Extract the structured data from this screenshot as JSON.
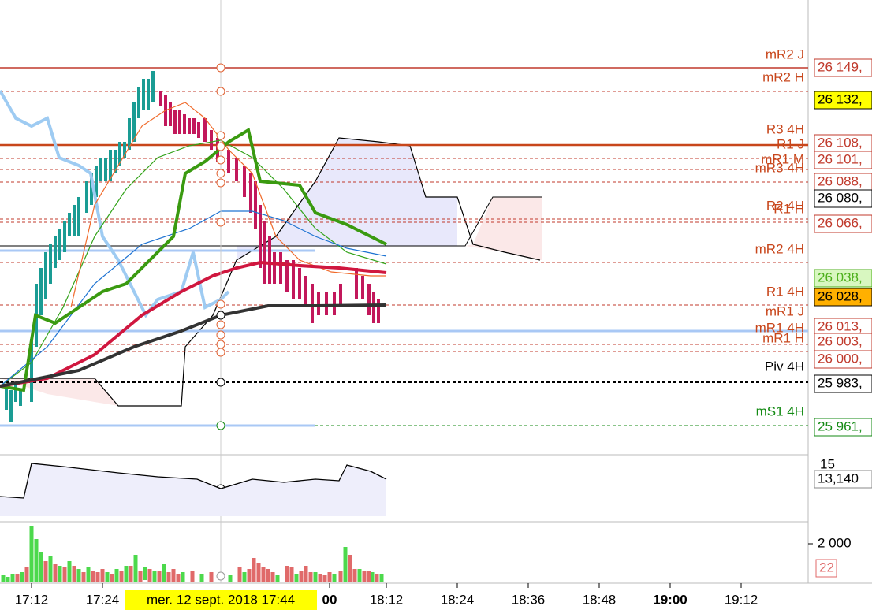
{
  "levels": [
    {
      "label": "mR2 J"
    },
    {
      "label": "mR2 H"
    },
    {
      "label": "R3 4H"
    },
    {
      "label": "R1 J"
    },
    {
      "label": "mR1 M"
    },
    {
      "label": "mR3 4H"
    },
    {
      "label": "R2 4H"
    },
    {
      "label": "R1 H"
    },
    {
      "label": "mR2 4H"
    },
    {
      "label": "R1 4H"
    },
    {
      "label": "mR1 J"
    },
    {
      "label": "mR1 4H"
    },
    {
      "label": "mR1 H"
    },
    {
      "label": "Piv 4H",
      "color": "#000000"
    },
    {
      "label": "mS1 4H",
      "color": "#138a13"
    }
  ],
  "price_labels": [
    {
      "text": "26 149,",
      "color": "#c0392b",
      "background": "#ffffff"
    },
    {
      "text": "26 132,",
      "color": "#000000",
      "background": "#ffff00"
    },
    {
      "text": "26 108,",
      "color": "#c0392b",
      "background": "#ffffff"
    },
    {
      "text": "26 101,",
      "color": "#c0392b",
      "background": "#ffffff"
    },
    {
      "text": "26 088,",
      "color": "#c0392b",
      "background": "#ffffff"
    },
    {
      "text": "26 080,",
      "color": "#000000",
      "background": "#ffffff"
    },
    {
      "text": "26 066,",
      "color": "#c0392b",
      "background": "#ffffff"
    },
    {
      "text": "26 038,",
      "color": "#4caf1a",
      "background": "#d8f7c0"
    },
    {
      "text": "26 028,",
      "color": "#000000",
      "background": "#ffb000"
    },
    {
      "text": "26 013,",
      "color": "#c0392b",
      "background": "#ffffff"
    },
    {
      "text": "26 003,",
      "color": "#c0392b",
      "background": "#ffffff"
    },
    {
      "text": "26 000,",
      "color": "#c0392b",
      "background": "#ffffff"
    },
    {
      "text": "25 983,",
      "color": "#000000",
      "background": "#ffffff"
    },
    {
      "text": "25 961,",
      "color": "#138a13",
      "background": "#ffffff"
    }
  ],
  "time_axis": [
    "17:12",
    "17:24",
    "00",
    "18:12",
    "18:24",
    "18:36",
    "18:48",
    "19:00",
    "19:12"
  ],
  "crosshair_time": "mer. 12 sept. 2018 17:44",
  "indicator": {
    "top_tick": "15",
    "value": "13,140"
  },
  "volume": {
    "tick": "2 000",
    "value": "22"
  }
}
